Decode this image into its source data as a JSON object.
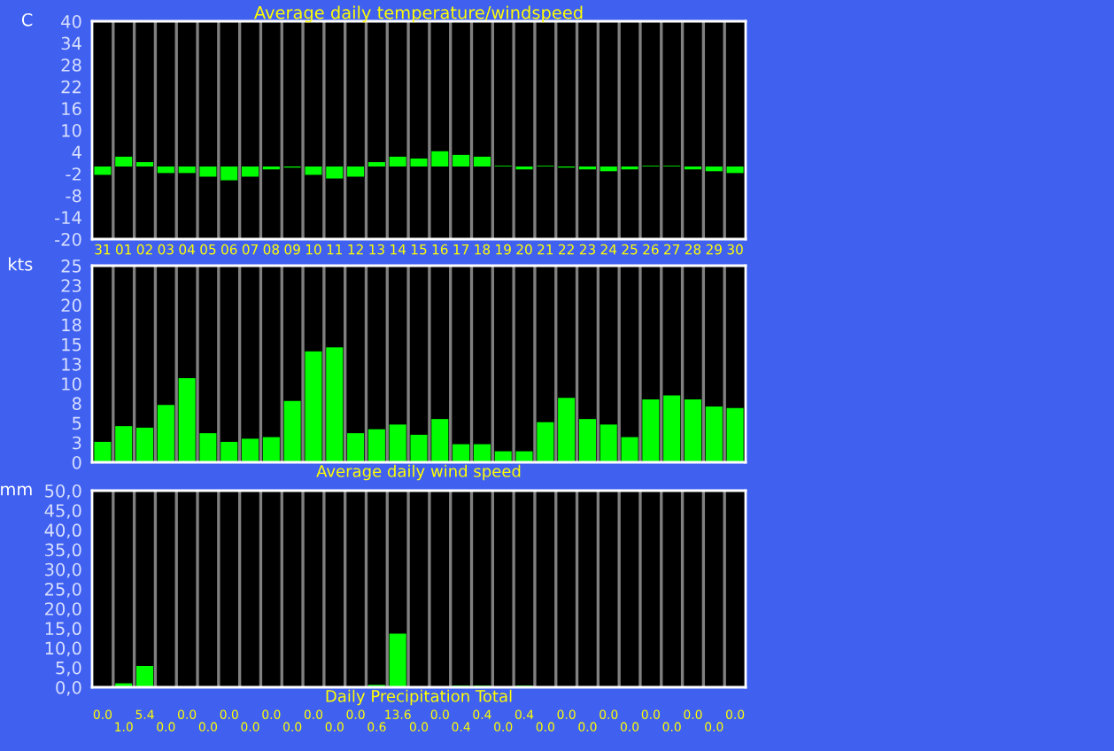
{
  "chart_data": [
    {
      "type": "bar",
      "title": "Average daily temperature/windspeed",
      "ylabel": "C",
      "categories": [
        "31",
        "01",
        "02",
        "03",
        "04",
        "05",
        "06",
        "07",
        "08",
        "09",
        "10",
        "11",
        "12",
        "13",
        "14",
        "15",
        "16",
        "17",
        "18",
        "19",
        "20",
        "21",
        "22",
        "23",
        "24",
        "25",
        "26",
        "27",
        "28",
        "29",
        "30"
      ],
      "values": [
        -2.3,
        2.7,
        1.2,
        -1.8,
        -1.8,
        -2.8,
        -3.8,
        -2.8,
        -0.8,
        -0.3,
        -2.3,
        -3.3,
        -2.8,
        1.2,
        2.7,
        2.2,
        4.2,
        3.2,
        2.7,
        0.2,
        -0.8,
        0.2,
        -0.3,
        -0.8,
        -1.3,
        -0.8,
        0.2,
        0.2,
        -0.8,
        -1.3,
        -1.8
      ],
      "color": "#00ff00",
      "ylim": [
        -20,
        40
      ],
      "yticks": [
        -20,
        -14,
        -8,
        -2,
        4,
        10,
        16,
        22,
        28,
        34,
        40
      ],
      "grid": "x"
    },
    {
      "type": "bar",
      "xlabel": "Average daily wind speed",
      "ylabel": "kts",
      "categories": [
        "31",
        "01",
        "02",
        "03",
        "04",
        "05",
        "06",
        "07",
        "08",
        "09",
        "10",
        "11",
        "12",
        "13",
        "14",
        "15",
        "16",
        "17",
        "18",
        "19",
        "20",
        "21",
        "22",
        "23",
        "24",
        "25",
        "26",
        "27",
        "28",
        "29",
        "30"
      ],
      "values": [
        2.6,
        4.6,
        4.4,
        7.3,
        10.7,
        3.7,
        2.6,
        3.0,
        3.2,
        7.8,
        14.1,
        14.6,
        3.7,
        4.2,
        4.8,
        3.5,
        5.5,
        2.3,
        2.3,
        1.4,
        1.4,
        5.1,
        8.2,
        5.5,
        4.8,
        3.2,
        8.0,
        8.5,
        8.0,
        7.1,
        6.9
      ],
      "color": "#00ff00",
      "ylim": [
        0,
        25
      ],
      "yticks": [
        0,
        {
          "value": 2.5,
          "label": "3"
        },
        5,
        {
          "value": 7.5,
          "label": "8"
        },
        10,
        {
          "value": 12.5,
          "label": "13"
        },
        15,
        {
          "value": 17.5,
          "label": "18"
        },
        20,
        {
          "value": 22.5,
          "label": "23"
        },
        25
      ],
      "grid": "x",
      "tick_labels": "y"
    },
    {
      "type": "bar",
      "xlabel": "Daily Precipitation Total",
      "ylabel": "mm",
      "categories": [
        "31",
        "01",
        "02",
        "03",
        "04",
        "05",
        "06",
        "07",
        "08",
        "09",
        "10",
        "11",
        "12",
        "13",
        "14",
        "15",
        "16",
        "17",
        "18",
        "19",
        "20",
        "21",
        "22",
        "23",
        "24",
        "25",
        "26",
        "27",
        "28",
        "29",
        "30"
      ],
      "values": [
        0.0,
        1.0,
        5.4,
        0.0,
        0.0,
        0.0,
        0.0,
        0.0,
        0.0,
        0.0,
        0.0,
        0.0,
        0.0,
        0.6,
        13.6,
        0.0,
        0.0,
        0.4,
        0.4,
        0.0,
        0.4,
        0.0,
        0.0,
        0.0,
        0.0,
        0.0,
        0.0,
        0.0,
        0.0,
        0.0,
        0.0
      ],
      "value_labels": [
        "0.0",
        "1.0",
        "5.4",
        "0.0",
        "0.0",
        "0.0",
        "0.0",
        "0.0",
        "0.0",
        "0.0",
        "0.0",
        "0.0",
        "0.0",
        "0.6",
        "13.6",
        "0.0",
        "0.0",
        "0.4",
        "0.4",
        "0.0",
        "0.4",
        "0.0",
        "0.0",
        "0.0",
        "0.0",
        "0.0",
        "0.0",
        "0.0",
        "0.0",
        "0.0",
        "0.0"
      ],
      "color": "#00ff00",
      "ylim": [
        0,
        50
      ],
      "yticks": [
        {
          "value": 0,
          "label": "0,0"
        },
        {
          "value": 5,
          "label": "5,0"
        },
        {
          "value": 10,
          "label": "10,0"
        },
        {
          "value": 15,
          "label": "15,0"
        },
        {
          "value": 20,
          "label": "20,0"
        },
        {
          "value": 25,
          "label": "25,0"
        },
        {
          "value": 30,
          "label": "30,0"
        },
        {
          "value": 35,
          "label": "35,0"
        },
        {
          "value": 40,
          "label": "40,0"
        },
        {
          "value": 45,
          "label": "45,0"
        },
        {
          "value": 50,
          "label": "50,0"
        }
      ],
      "grid": "x",
      "tick_labels": "y"
    }
  ]
}
